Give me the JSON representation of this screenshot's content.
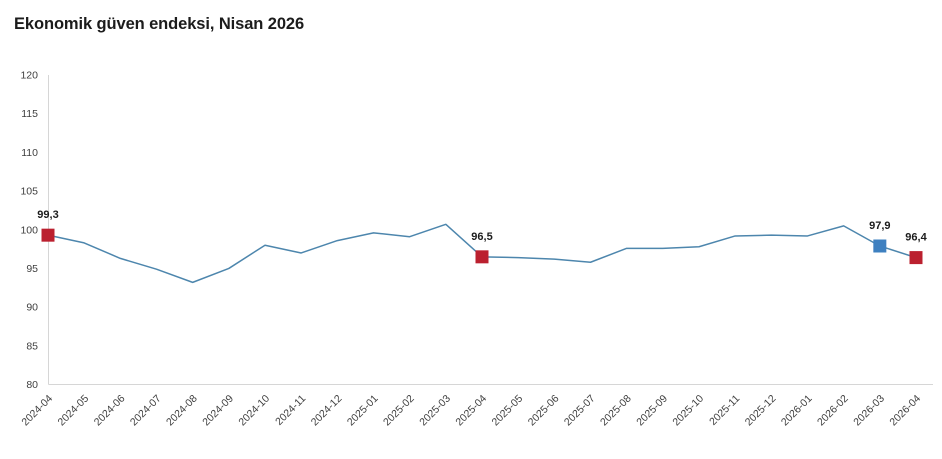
{
  "title": "Ekonomik güven endeksi, Nisan 2026",
  "colors": {
    "line": "#4d86ad",
    "marker_red": "#bb202f",
    "marker_blue": "#3e80c0",
    "axis": "#d6d6d6",
    "tick_text": "#3f3f3f",
    "annotation_text": "#1c1c1c",
    "title_text": "#1c1c1c"
  },
  "chart_data": {
    "type": "line",
    "title": "Ekonomik güven endeksi, Nisan 2026",
    "xlabel": "",
    "ylabel": "",
    "ylim": [
      80,
      120
    ],
    "yticks": [
      80,
      85,
      90,
      95,
      100,
      105,
      110,
      115,
      120
    ],
    "grid": false,
    "legend": false,
    "x": [
      "2024-04",
      "2024-05",
      "2024-06",
      "2024-07",
      "2024-08",
      "2024-09",
      "2024-10",
      "2024-11",
      "2024-12",
      "2025-01",
      "2025-02",
      "2025-03",
      "2025-04",
      "2025-05",
      "2025-06",
      "2025-07",
      "2025-08",
      "2025-09",
      "2025-10",
      "2025-11",
      "2025-12",
      "2026-01",
      "2026-02",
      "2026-03",
      "2026-04"
    ],
    "series": [
      {
        "name": "Ekonomik güven endeksi",
        "values": [
          99.3,
          98.3,
          96.3,
          94.9,
          93.2,
          95.0,
          98.0,
          97.0,
          98.6,
          99.6,
          99.1,
          100.7,
          96.5,
          96.4,
          96.2,
          95.8,
          97.6,
          97.6,
          97.8,
          99.2,
          99.3,
          99.2,
          100.5,
          97.9,
          96.4
        ]
      }
    ],
    "annotations": [
      {
        "x": "2024-04",
        "index": 0,
        "value": 99.3,
        "label": "99,3",
        "marker": "square",
        "color_key": "marker_red"
      },
      {
        "x": "2025-04",
        "index": 12,
        "value": 96.5,
        "label": "96,5",
        "marker": "square",
        "color_key": "marker_red"
      },
      {
        "x": "2026-03",
        "index": 23,
        "value": 97.9,
        "label": "97,9",
        "marker": "square",
        "color_key": "marker_blue"
      },
      {
        "x": "2026-04",
        "index": 24,
        "value": 96.4,
        "label": "96,4",
        "marker": "square",
        "color_key": "marker_red"
      }
    ]
  }
}
